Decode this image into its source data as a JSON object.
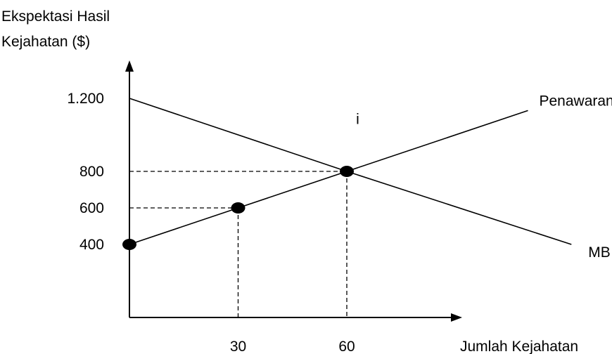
{
  "chart_data": {
    "type": "line",
    "ylabel": [
      "Ekspektasi Hasil",
      "Kejahatan ($)"
    ],
    "xlabel": "Jumlah Kejahatan",
    "y_ticks": [
      {
        "value": 1200,
        "label": "1.200"
      },
      {
        "value": 800,
        "label": "800"
      },
      {
        "value": 600,
        "label": "600"
      },
      {
        "value": 400,
        "label": "400"
      }
    ],
    "x_ticks": [
      {
        "value": 30,
        "label": "30"
      },
      {
        "value": 60,
        "label": "60"
      }
    ],
    "series": [
      {
        "name": "Penawaran/MC",
        "x": [
          0,
          30,
          60,
          110
        ],
        "y": [
          400,
          600,
          800,
          1133
        ]
      },
      {
        "name": "MB",
        "x": [
          0,
          60,
          122
        ],
        "y": [
          1200,
          800,
          400
        ]
      }
    ],
    "points": [
      {
        "x": 0,
        "y": 400
      },
      {
        "x": 30,
        "y": 600
      },
      {
        "x": 60,
        "y": 800
      }
    ],
    "annotations": [
      {
        "text": "i",
        "x": 63,
        "y": 1060
      }
    ],
    "xlim": [
      0,
      143
    ],
    "ylim": [
      0,
      1600
    ],
    "grid": false,
    "legend": "none"
  }
}
